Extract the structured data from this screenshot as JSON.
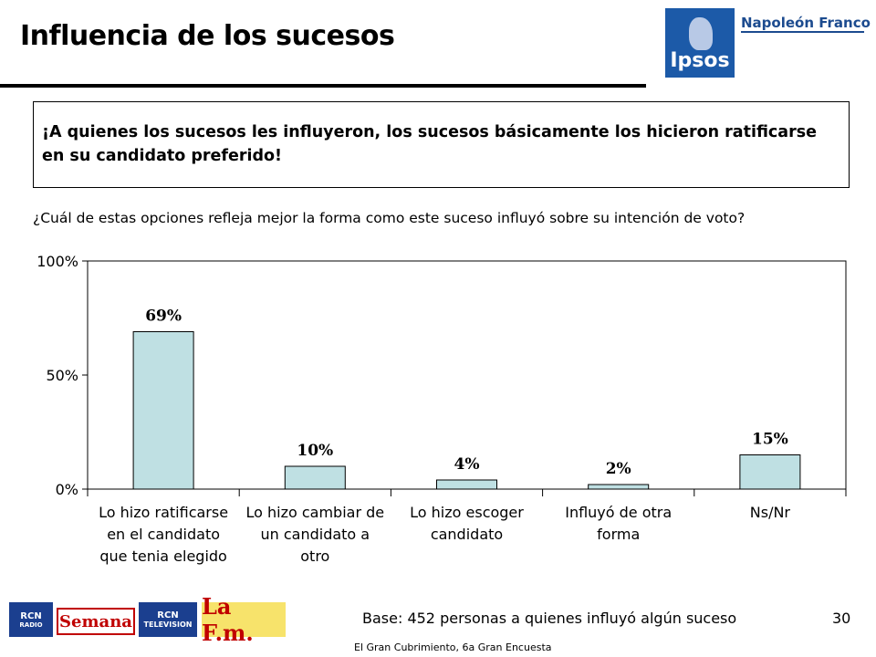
{
  "header": {
    "title": "Influencia de los sucesos",
    "logo_ipsos": "Ipsos",
    "logo_napoleon": "Napoleón Franco"
  },
  "headline": "¡A quienes los sucesos les influyeron, los sucesos básicamente los hicieron ratificarse en su candidato preferido!",
  "question": "¿Cuál de estas opciones refleja mejor la forma como este suceso influyó sobre su intención de voto?",
  "chart_data": {
    "type": "bar",
    "categories": [
      "Lo hizo ratificarse en el candidato que tenia elegido",
      "Lo hizo cambiar de un candidato a otro",
      "Lo hizo escoger candidato",
      "Influyó de otra forma",
      "Ns/Nr"
    ],
    "category_lines": [
      [
        "Lo hizo ratificarse",
        "en el candidato",
        "que tenia elegido"
      ],
      [
        "Lo hizo cambiar de",
        "un candidato a",
        "otro"
      ],
      [
        "Lo hizo escoger",
        "candidato"
      ],
      [
        "Influyó de otra",
        "forma"
      ],
      [
        "Ns/Nr"
      ]
    ],
    "values": [
      69,
      10,
      4,
      2,
      15
    ],
    "data_labels": [
      "69%",
      "10%",
      "4%",
      "2%",
      "15%"
    ],
    "yticks": [
      "0%",
      "50%",
      "100%"
    ],
    "ylim": [
      0,
      100
    ],
    "bar_color": "#bfe0e3",
    "grid": false
  },
  "footer": {
    "base": "Base: 452 personas a quienes influyó algún suceso",
    "page_number": "30",
    "source": "El Gran Cubrimiento, 6a Gran Encuesta",
    "media_logos": {
      "rcn_radio_top": "RCN",
      "rcn_radio_bottom": "RADIO",
      "semana": "Semana",
      "rcn_tv_top": "RCN",
      "rcn_tv_bottom": "TELEVISION",
      "lafm": "La F.m."
    }
  }
}
